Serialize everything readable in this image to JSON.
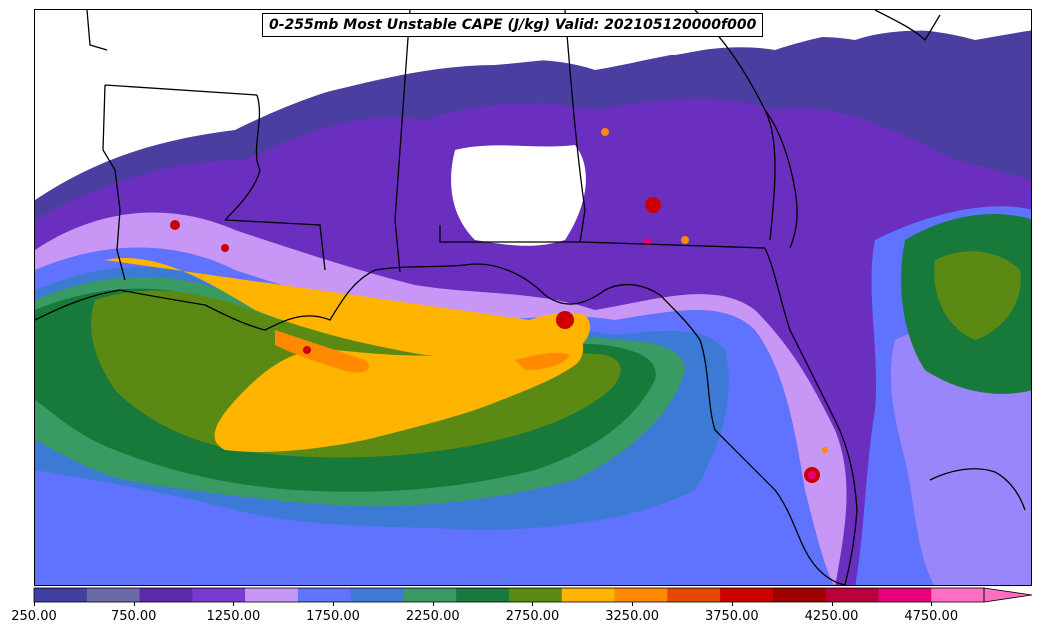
{
  "title": "0-255mb Most Unstable CAPE (J/kg) Valid: 202105120000f000",
  "colorbar": {
    "colors": [
      "#3f3f9f",
      "#6a6aa6",
      "#5a2aa8",
      "#7a3ad0",
      "#c896f5",
      "#5f73ff",
      "#3d7ad6",
      "#3a9a64",
      "#177a3a",
      "#5a8a14",
      "#ffb400",
      "#ff8a00",
      "#e64600",
      "#cc0000",
      "#a00000",
      "#b8003a",
      "#e8007a",
      "#ff6ec0"
    ],
    "min": 250,
    "max": 4750,
    "step": 250,
    "extend": "max",
    "tick_labels": [
      "250.00",
      "750.00",
      "1250.00",
      "1750.00",
      "2250.00",
      "2750.00",
      "3250.00",
      "3750.00",
      "4250.00",
      "4750.00"
    ],
    "tick_values": [
      250,
      750,
      1250,
      1750,
      2250,
      2750,
      3250,
      3750,
      4250,
      4750
    ]
  },
  "map": {
    "region": "Gulf of Mexico and southeastern United States",
    "colors": {
      "land_no_data": "#ffffff",
      "boundary": "#000000",
      "field_purple_dark": "#4a3fa0",
      "field_purple": "#6b2fc0",
      "field_lavender": "#c896f5",
      "field_blue": "#5f73ff",
      "field_steel": "#3d7ad6",
      "field_teal": "#3a9a64",
      "field_green": "#177a3a",
      "field_olive": "#5a8a14",
      "field_yellow": "#ffb400",
      "field_orange": "#ff8a00",
      "field_red": "#cc0000"
    }
  }
}
